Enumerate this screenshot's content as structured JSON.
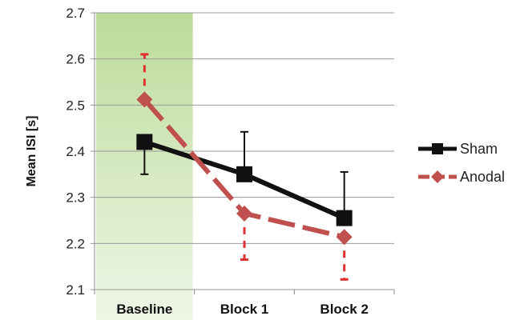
{
  "chart_data": {
    "type": "line",
    "categories": [
      "Baseline",
      "Block 1",
      "Block 2"
    ],
    "ylabel": "Mean ISI [s]",
    "ylim": [
      2.1,
      2.7
    ],
    "yticks": [
      "2.1",
      "2.2",
      "2.3",
      "2.4",
      "2.5",
      "2.6",
      "2.7"
    ],
    "grid": true,
    "legend": "right",
    "highlight_category": "Baseline",
    "highlight_color": "#bcdc9a",
    "series": [
      {
        "name": "Sham",
        "values": [
          2.42,
          2.35,
          2.255
        ],
        "error_plus": [
          0.0,
          0.092,
          0.1
        ],
        "error_minus": [
          0.07,
          0.0,
          0.0
        ],
        "color": "#111111",
        "marker": "square",
        "line_style": "solid"
      },
      {
        "name": "Anodal",
        "values": [
          2.512,
          2.265,
          2.214
        ],
        "error_plus": [
          0.098,
          0.0,
          0.0
        ],
        "error_minus": [
          0.0,
          0.1,
          0.092
        ],
        "color": "#c0504d",
        "error_color": "#e03030",
        "marker": "diamond",
        "line_style": "dashed"
      }
    ]
  }
}
